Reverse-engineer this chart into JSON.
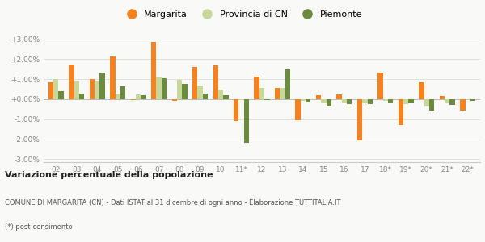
{
  "years": [
    "02",
    "03",
    "04",
    "05",
    "06",
    "07",
    "08",
    "09",
    "10",
    "11*",
    "12",
    "13",
    "14",
    "15",
    "16",
    "17",
    "18*",
    "19*",
    "20*",
    "21*",
    "22*"
  ],
  "margarita": [
    0.85,
    1.75,
    1.0,
    2.15,
    -0.05,
    2.85,
    -0.1,
    1.6,
    1.7,
    -1.1,
    1.15,
    0.55,
    -1.05,
    0.2,
    0.25,
    -2.05,
    1.35,
    -1.3,
    0.85,
    0.15,
    -0.55
  ],
  "provincia_cn": [
    1.0,
    0.9,
    0.9,
    0.25,
    0.25,
    1.1,
    0.95,
    0.7,
    0.5,
    -0.05,
    0.55,
    0.55,
    -0.1,
    -0.2,
    -0.2,
    -0.2,
    -0.1,
    -0.25,
    -0.35,
    -0.2,
    -0.05
  ],
  "piemonte": [
    0.4,
    0.3,
    1.35,
    0.65,
    0.2,
    1.05,
    0.75,
    0.3,
    0.2,
    -2.2,
    -0.05,
    1.5,
    -0.15,
    -0.35,
    -0.25,
    -0.25,
    -0.2,
    -0.2,
    -0.55,
    -0.3,
    -0.1
  ],
  "color_margarita": "#f5821f",
  "color_provincia": "#c8d89a",
  "color_piemonte": "#6b8c3e",
  "ylim": [
    -3.0,
    3.0
  ],
  "yticks": [
    -3.0,
    -2.0,
    -1.0,
    0.0,
    1.0,
    2.0,
    3.0
  ],
  "title_bold": "Variazione percentuale della popolazione",
  "subtitle1": "COMUNE DI MARGARITA (CN) - Dati ISTAT al 31 dicembre di ogni anno - Elaborazione TUTTITALIA.IT",
  "subtitle2": "(*) post-censimento",
  "legend_labels": [
    "Margarita",
    "Provincia di CN",
    "Piemonte"
  ],
  "bg_color": "#f9f9f7",
  "grid_color": "#e0e0e0"
}
